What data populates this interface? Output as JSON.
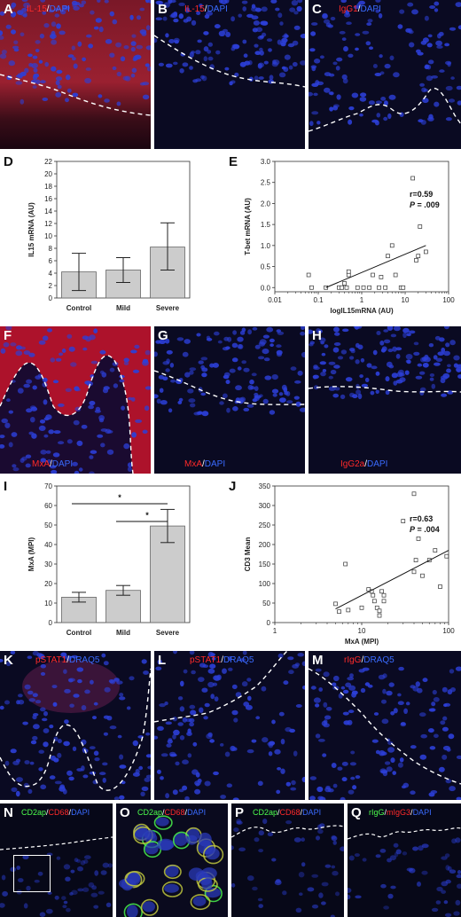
{
  "panels": {
    "A": {
      "letter": "A",
      "marker": "IL-15",
      "sep": "/",
      "counter": "DAPI"
    },
    "B": {
      "letter": "B",
      "marker": "IL-15",
      "sep": "/",
      "counter": "DAPI"
    },
    "C": {
      "letter": "C",
      "marker": "IgG1",
      "sep": "/",
      "counter": "DAPI"
    },
    "D": {
      "letter": "D"
    },
    "E": {
      "letter": "E"
    },
    "F": {
      "letter": "F",
      "marker": "MxA",
      "sep": "/",
      "counter": "DAPI"
    },
    "G": {
      "letter": "G",
      "marker": "MxA",
      "sep": "/",
      "counter": "DAPI"
    },
    "H": {
      "letter": "H",
      "marker": "IgG2a",
      "sep": "/",
      "counter": "DAPI"
    },
    "I": {
      "letter": "I"
    },
    "J": {
      "letter": "J"
    },
    "K": {
      "letter": "K",
      "marker": "pSTAT1",
      "sep": "/",
      "counter": "DRAQ5"
    },
    "L": {
      "letter": "L",
      "marker": "pSTAT1",
      "sep": "/",
      "counter": "DRAQ5"
    },
    "M": {
      "letter": "M",
      "marker": "rIgG",
      "sep": "/",
      "counter": "DRAQ5"
    },
    "N": {
      "letter": "N",
      "green": "CD2ap",
      "red": "CD68",
      "counter": "DAPI"
    },
    "O": {
      "letter": "O",
      "green": "CD2ap",
      "red": "CD68",
      "counter": "DAPI"
    },
    "P": {
      "letter": "P",
      "green": "CD2ap",
      "red": "CD68",
      "counter": "DAPI"
    },
    "Q": {
      "letter": "Q",
      "green": "rIgG",
      "red": "mIgG3",
      "counter": "DAPI"
    }
  },
  "colors": {
    "red": "#ff2a2a",
    "blue": "#3a6bff",
    "green": "#4dff4d",
    "bar": "#cccccc",
    "nucleus": "#2c3fd8"
  },
  "chart_data": [
    {
      "panel": "D",
      "type": "bar",
      "categories": [
        "Control",
        "Mild",
        "Severe"
      ],
      "values": [
        4.2,
        4.5,
        8.2
      ],
      "error_low": [
        1.2,
        2.5,
        4.5
      ],
      "error_high": [
        7.2,
        6.5,
        12.1
      ],
      "ylabel": "IL15 mRNA (AU)",
      "xlabel": "",
      "ylim": [
        0,
        22
      ],
      "yticks": [
        "0",
        "2",
        "4",
        "6",
        "8",
        "10",
        "12",
        "14",
        "16",
        "18",
        "20",
        "22"
      ]
    },
    {
      "panel": "E",
      "type": "scatter",
      "xscale": "log",
      "xlim": [
        0.01,
        100
      ],
      "ylim": [
        -0.1,
        3.0
      ],
      "xticks": [
        "0.01",
        "0.1",
        "1",
        "10",
        "100"
      ],
      "yticks": [
        "0.0",
        "0.5",
        "1.0",
        "1.5",
        "2.0",
        "2.5",
        "3.0"
      ],
      "xlabel": "logIL15mRNA (AU)",
      "ylabel": "T-bet mRNA (AU)",
      "points": [
        [
          0.06,
          0.3
        ],
        [
          0.07,
          0.0
        ],
        [
          0.15,
          0.0
        ],
        [
          0.3,
          0.0
        ],
        [
          0.35,
          0.0
        ],
        [
          0.4,
          0.1
        ],
        [
          0.45,
          0.0
        ],
        [
          0.5,
          0.3
        ],
        [
          0.5,
          0.38
        ],
        [
          0.8,
          0.0
        ],
        [
          1.1,
          0.0
        ],
        [
          1.5,
          0.0
        ],
        [
          1.8,
          0.3
        ],
        [
          2.5,
          0.0
        ],
        [
          2.8,
          0.25
        ],
        [
          3.5,
          0.0
        ],
        [
          4.0,
          0.75
        ],
        [
          5.0,
          1.0
        ],
        [
          6.0,
          0.3
        ],
        [
          8.0,
          0.0
        ],
        [
          9.0,
          0.0
        ],
        [
          15.0,
          2.6
        ],
        [
          18.0,
          0.65
        ],
        [
          20.0,
          0.75
        ],
        [
          22.0,
          1.45
        ],
        [
          30.0,
          0.85
        ]
      ],
      "fit": [
        [
          0.15,
          0.0
        ],
        [
          30.0,
          1.0
        ]
      ],
      "annotation_r": "r=0.59",
      "annotation_p_label": "P",
      "annotation_p_value": " = .009"
    },
    {
      "panel": "I",
      "type": "bar",
      "categories": [
        "Control",
        "Mild",
        "Severe"
      ],
      "values": [
        13,
        16.5,
        49.5
      ],
      "error_low": [
        10.5,
        14,
        41
      ],
      "error_high": [
        15.5,
        19,
        58
      ],
      "ylabel": "MxA (MPI)",
      "xlabel": "",
      "ylim": [
        0,
        70
      ],
      "yticks": [
        "0",
        "10",
        "20",
        "30",
        "40",
        "50",
        "60",
        "70"
      ],
      "significance": [
        {
          "from": "Control",
          "to": "Severe",
          "label": "*"
        },
        {
          "from": "Mild",
          "to": "Severe",
          "label": "*"
        }
      ]
    },
    {
      "panel": "J",
      "type": "scatter",
      "xscale": "log",
      "xlim": [
        1,
        100
      ],
      "ylim": [
        0,
        350
      ],
      "xticks": [
        "1",
        "10",
        "100"
      ],
      "yticks": [
        "0",
        "50",
        "100",
        "150",
        "200",
        "250",
        "300",
        "350"
      ],
      "xlabel": "MxA (MPI)",
      "ylabel": "CD3 Mean",
      "points": [
        [
          5.0,
          48
        ],
        [
          5.5,
          28
        ],
        [
          6.5,
          150
        ],
        [
          7.0,
          32
        ],
        [
          10.0,
          38
        ],
        [
          12.0,
          85
        ],
        [
          13.0,
          80
        ],
        [
          13.5,
          70
        ],
        [
          14.0,
          55
        ],
        [
          15.0,
          38
        ],
        [
          16.0,
          18
        ],
        [
          16.0,
          30
        ],
        [
          17.0,
          80
        ],
        [
          18.0,
          55
        ],
        [
          18.0,
          70
        ],
        [
          30.0,
          260
        ],
        [
          40.0,
          330
        ],
        [
          40.0,
          130
        ],
        [
          42.0,
          160
        ],
        [
          45.0,
          215
        ],
        [
          50.0,
          120
        ],
        [
          60.0,
          160
        ],
        [
          70.0,
          185
        ],
        [
          80.0,
          92
        ],
        [
          95.0,
          170
        ]
      ],
      "fit": [
        [
          5.0,
          35
        ],
        [
          100.0,
          185
        ]
      ],
      "annotation_r": "r=0.63",
      "annotation_p_label": "P",
      "annotation_p_value": " = .004"
    }
  ]
}
